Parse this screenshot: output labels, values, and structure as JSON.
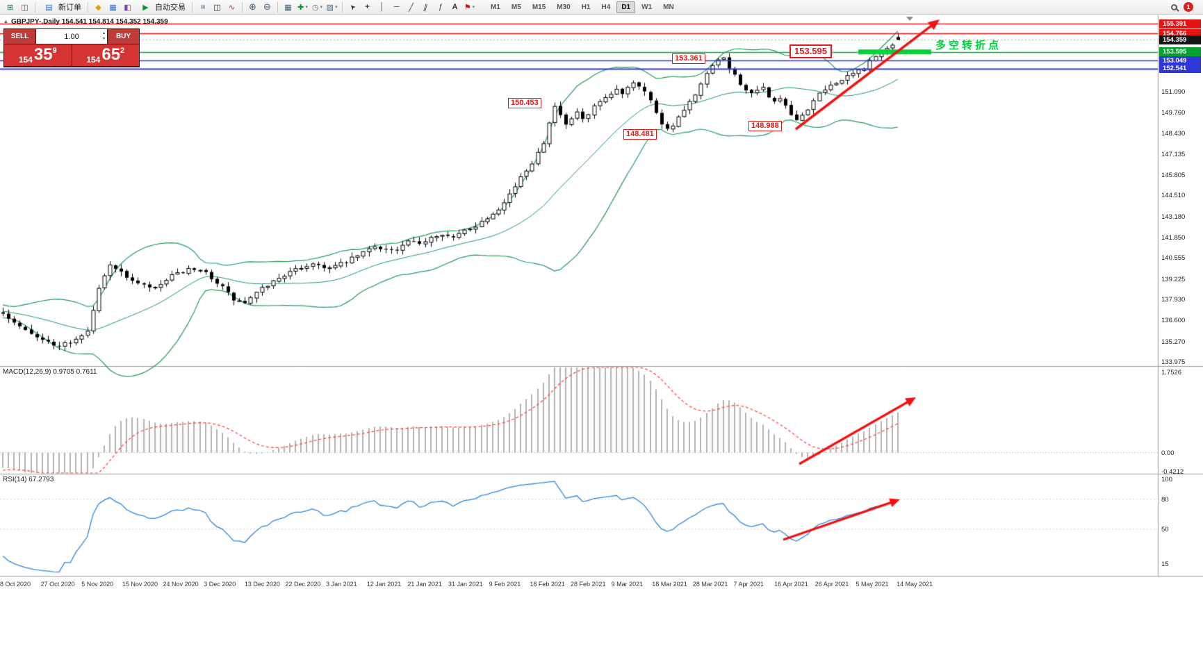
{
  "toolbar": {
    "icon_groups": [
      [
        "new-chart",
        "profiles"
      ],
      [
        "metaeditor",
        "market-watch",
        "navigator"
      ],
      [
        "bar-chart",
        "candlestick-chart",
        "line-chart"
      ],
      [
        "zoom-in",
        "zoom-out"
      ],
      [
        "tile-windows",
        "indicators",
        "periods",
        "templates"
      ],
      [
        "cursor",
        "crosshair",
        "vertical-line",
        "horizontal-line",
        "trendline",
        "channel",
        "fibonacci",
        "text-tool",
        "arrows-tool"
      ]
    ],
    "new_order_label": "新订单",
    "autotrade_label": "自动交易",
    "timeframes": [
      "M1",
      "M5",
      "M15",
      "M30",
      "H1",
      "H4",
      "D1",
      "W1",
      "MN"
    ],
    "active_timeframe": "D1",
    "notification_count": "1"
  },
  "chart": {
    "title": "GBPJPY-,Daily 154.541 154.814 154.352 154.359",
    "order_panel": {
      "sell_label": "SELL",
      "buy_label": "BUY",
      "volume": "1.00",
      "bid_main": "154",
      "bid_big": "35",
      "bid_sup": "9",
      "ask_main": "154",
      "ask_big": "65",
      "ask_sup": "2"
    },
    "price_labels": [
      "153.361",
      "153.595",
      "150.453",
      "148.481",
      "148.988"
    ],
    "turning_point_label": "多空转折点",
    "price_scale_tags": [
      {
        "text": "155.391",
        "style": "red"
      },
      {
        "text": "154.766",
        "style": "red"
      },
      {
        "text": "154.359",
        "style": "black"
      },
      {
        "text": "153.595",
        "style": "green"
      },
      {
        "text": "153.049",
        "style": "blue"
      },
      {
        "text": "152.541",
        "style": "blue"
      }
    ],
    "price_scale_values": [
      "151.090",
      "149.760",
      "148.430",
      "147.135",
      "145.805",
      "144.510",
      "143.180",
      "141.850",
      "140.555",
      "139.225",
      "137.930",
      "136.600",
      "135.270",
      "133.975"
    ]
  },
  "macd": {
    "label": "MACD(12,26,9) 0.9705 0.7611",
    "scale": [
      "1.7526",
      "0.00",
      "-0.4212"
    ]
  },
  "rsi": {
    "label": "RSI(14) 67.2793",
    "scale": [
      "100",
      "80",
      "50",
      "15"
    ]
  },
  "dates": [
    "8 Oct 2020",
    "27 Oct 2020",
    "5 Nov 2020",
    "15 Nov 2020",
    "24 Nov 2020",
    "3 Dec 2020",
    "13 Dec 2020",
    "22 Dec 2020",
    "3 Jan 2021",
    "12 Jan 2021",
    "21 Jan 2021",
    "31 Jan 2021",
    "9 Feb 2021",
    "18 Feb 2021",
    "28 Feb 2021",
    "9 Mar 2021",
    "18 Mar 2021",
    "28 Mar 2021",
    "7 Apr 2021",
    "16 Apr 2021",
    "26 Apr 2021",
    "5 May 2021",
    "14 May 2021"
  ],
  "colors": {
    "resistance_red": "#e61414",
    "level_blue": "#3038d8",
    "support_green": "#00b43c",
    "thick_green": "#00d23c",
    "bollinger_green": "#1e9b57",
    "macd_histogram": "#b2b2b2",
    "macd_signal_red": "#ff3b3b",
    "rsi_blue": "#2e86de",
    "trend_arrow_red": "#f31111"
  },
  "chart_data": {
    "type": "candlestick",
    "symbol": "GBPJPY",
    "timeframe": "Daily",
    "current_bar": {
      "open": 154.541,
      "high": 154.814,
      "low": 154.352,
      "close": 154.359
    },
    "visible_price_range": [
      133.975,
      155.391
    ],
    "levels": [
      {
        "price": 155.391,
        "style": "red"
      },
      {
        "price": 154.766,
        "style": "red"
      },
      {
        "price": 154.359,
        "style": "current"
      },
      {
        "price": 153.595,
        "style": "green"
      },
      {
        "price": 153.049,
        "style": "blue"
      },
      {
        "price": 152.541,
        "style": "blue"
      }
    ],
    "indicators": [
      {
        "name": "Bollinger Bands",
        "period": 20,
        "deviation": 2
      },
      {
        "name": "MACD",
        "fast": 12,
        "slow": 26,
        "signal": 9,
        "value": 0.9705,
        "signal_value": 0.7611,
        "scale_max": 1.7526,
        "scale_min": -0.4212
      },
      {
        "name": "RSI",
        "period": 14,
        "value": 67.2793
      }
    ],
    "close_waypoints": [
      [
        -30,
        139.2
      ],
      [
        -24,
        138.4
      ],
      [
        -18,
        137.6
      ],
      [
        -12,
        137.0
      ],
      [
        -6,
        137.1
      ],
      [
        0,
        137.0
      ],
      [
        3,
        136.3
      ],
      [
        6,
        135.6
      ],
      [
        9,
        135.0
      ],
      [
        12,
        135.2
      ],
      [
        15,
        135.9
      ],
      [
        17,
        138.6
      ],
      [
        19,
        140.2
      ],
      [
        21,
        139.6
      ],
      [
        24,
        138.9
      ],
      [
        27,
        138.6
      ],
      [
        30,
        139.4
      ],
      [
        33,
        139.8
      ],
      [
        36,
        139.6
      ],
      [
        39,
        138.7
      ],
      [
        41,
        137.9
      ],
      [
        43,
        137.7
      ],
      [
        46,
        138.6
      ],
      [
        49,
        139.3
      ],
      [
        52,
        139.8
      ],
      [
        55,
        140.2
      ],
      [
        58,
        139.9
      ],
      [
        61,
        140.3
      ],
      [
        64,
        140.9
      ],
      [
        66,
        141.3
      ],
      [
        68,
        141.1
      ],
      [
        70,
        141.0
      ],
      [
        72,
        141.6
      ],
      [
        74,
        141.4
      ],
      [
        76,
        141.9
      ],
      [
        78,
        142.1
      ],
      [
        80,
        141.8
      ],
      [
        82,
        142.3
      ],
      [
        84,
        142.6
      ],
      [
        86,
        143.1
      ],
      [
        88,
        143.7
      ],
      [
        90,
        144.6
      ],
      [
        92,
        145.6
      ],
      [
        94,
        146.6
      ],
      [
        96,
        147.9
      ],
      [
        97,
        149.2
      ],
      [
        98,
        150.1
      ],
      [
        99,
        149.6
      ],
      [
        100,
        148.9
      ],
      [
        101,
        149.3
      ],
      [
        102,
        149.8
      ],
      [
        103,
        149.3
      ],
      [
        104,
        149.6
      ],
      [
        105,
        150.1
      ],
      [
        106,
        150.4
      ],
      [
        107,
        150.6
      ],
      [
        108,
        150.9
      ],
      [
        109,
        151.2
      ],
      [
        110,
        151.0
      ],
      [
        111,
        151.4
      ],
      [
        112,
        151.7
      ],
      [
        113,
        151.5
      ],
      [
        114,
        151.1
      ],
      [
        115,
        150.5
      ],
      [
        116,
        149.8
      ],
      [
        117,
        149.1
      ],
      [
        118,
        148.7
      ],
      [
        119,
        149.0
      ],
      [
        120,
        149.4
      ],
      [
        121,
        149.9
      ],
      [
        122,
        150.4
      ],
      [
        123,
        150.8
      ],
      [
        124,
        151.5
      ],
      [
        125,
        152.2
      ],
      [
        126,
        152.7
      ],
      [
        127,
        153.0
      ],
      [
        128,
        153.2
      ],
      [
        129,
        152.6
      ],
      [
        130,
        152.1
      ],
      [
        131,
        151.6
      ],
      [
        132,
        151.2
      ],
      [
        133,
        150.9
      ],
      [
        134,
        151.1
      ],
      [
        135,
        151.3
      ],
      [
        136,
        150.8
      ],
      [
        137,
        150.4
      ],
      [
        138,
        150.7
      ],
      [
        139,
        150.1
      ],
      [
        140,
        149.6
      ],
      [
        141,
        149.2
      ],
      [
        142,
        149.6
      ],
      [
        143,
        150.0
      ],
      [
        144,
        150.5
      ],
      [
        145,
        150.9
      ],
      [
        146,
        151.2
      ],
      [
        147,
        151.5
      ],
      [
        148,
        151.7
      ],
      [
        149,
        151.8
      ],
      [
        150,
        152.0
      ],
      [
        151,
        152.2
      ],
      [
        152,
        152.4
      ],
      [
        153,
        152.6
      ],
      [
        154,
        153.0
      ],
      [
        155,
        153.3
      ],
      [
        156,
        153.5
      ],
      [
        157,
        153.8
      ],
      [
        158,
        154.1
      ],
      [
        159,
        154.36
      ]
    ]
  }
}
